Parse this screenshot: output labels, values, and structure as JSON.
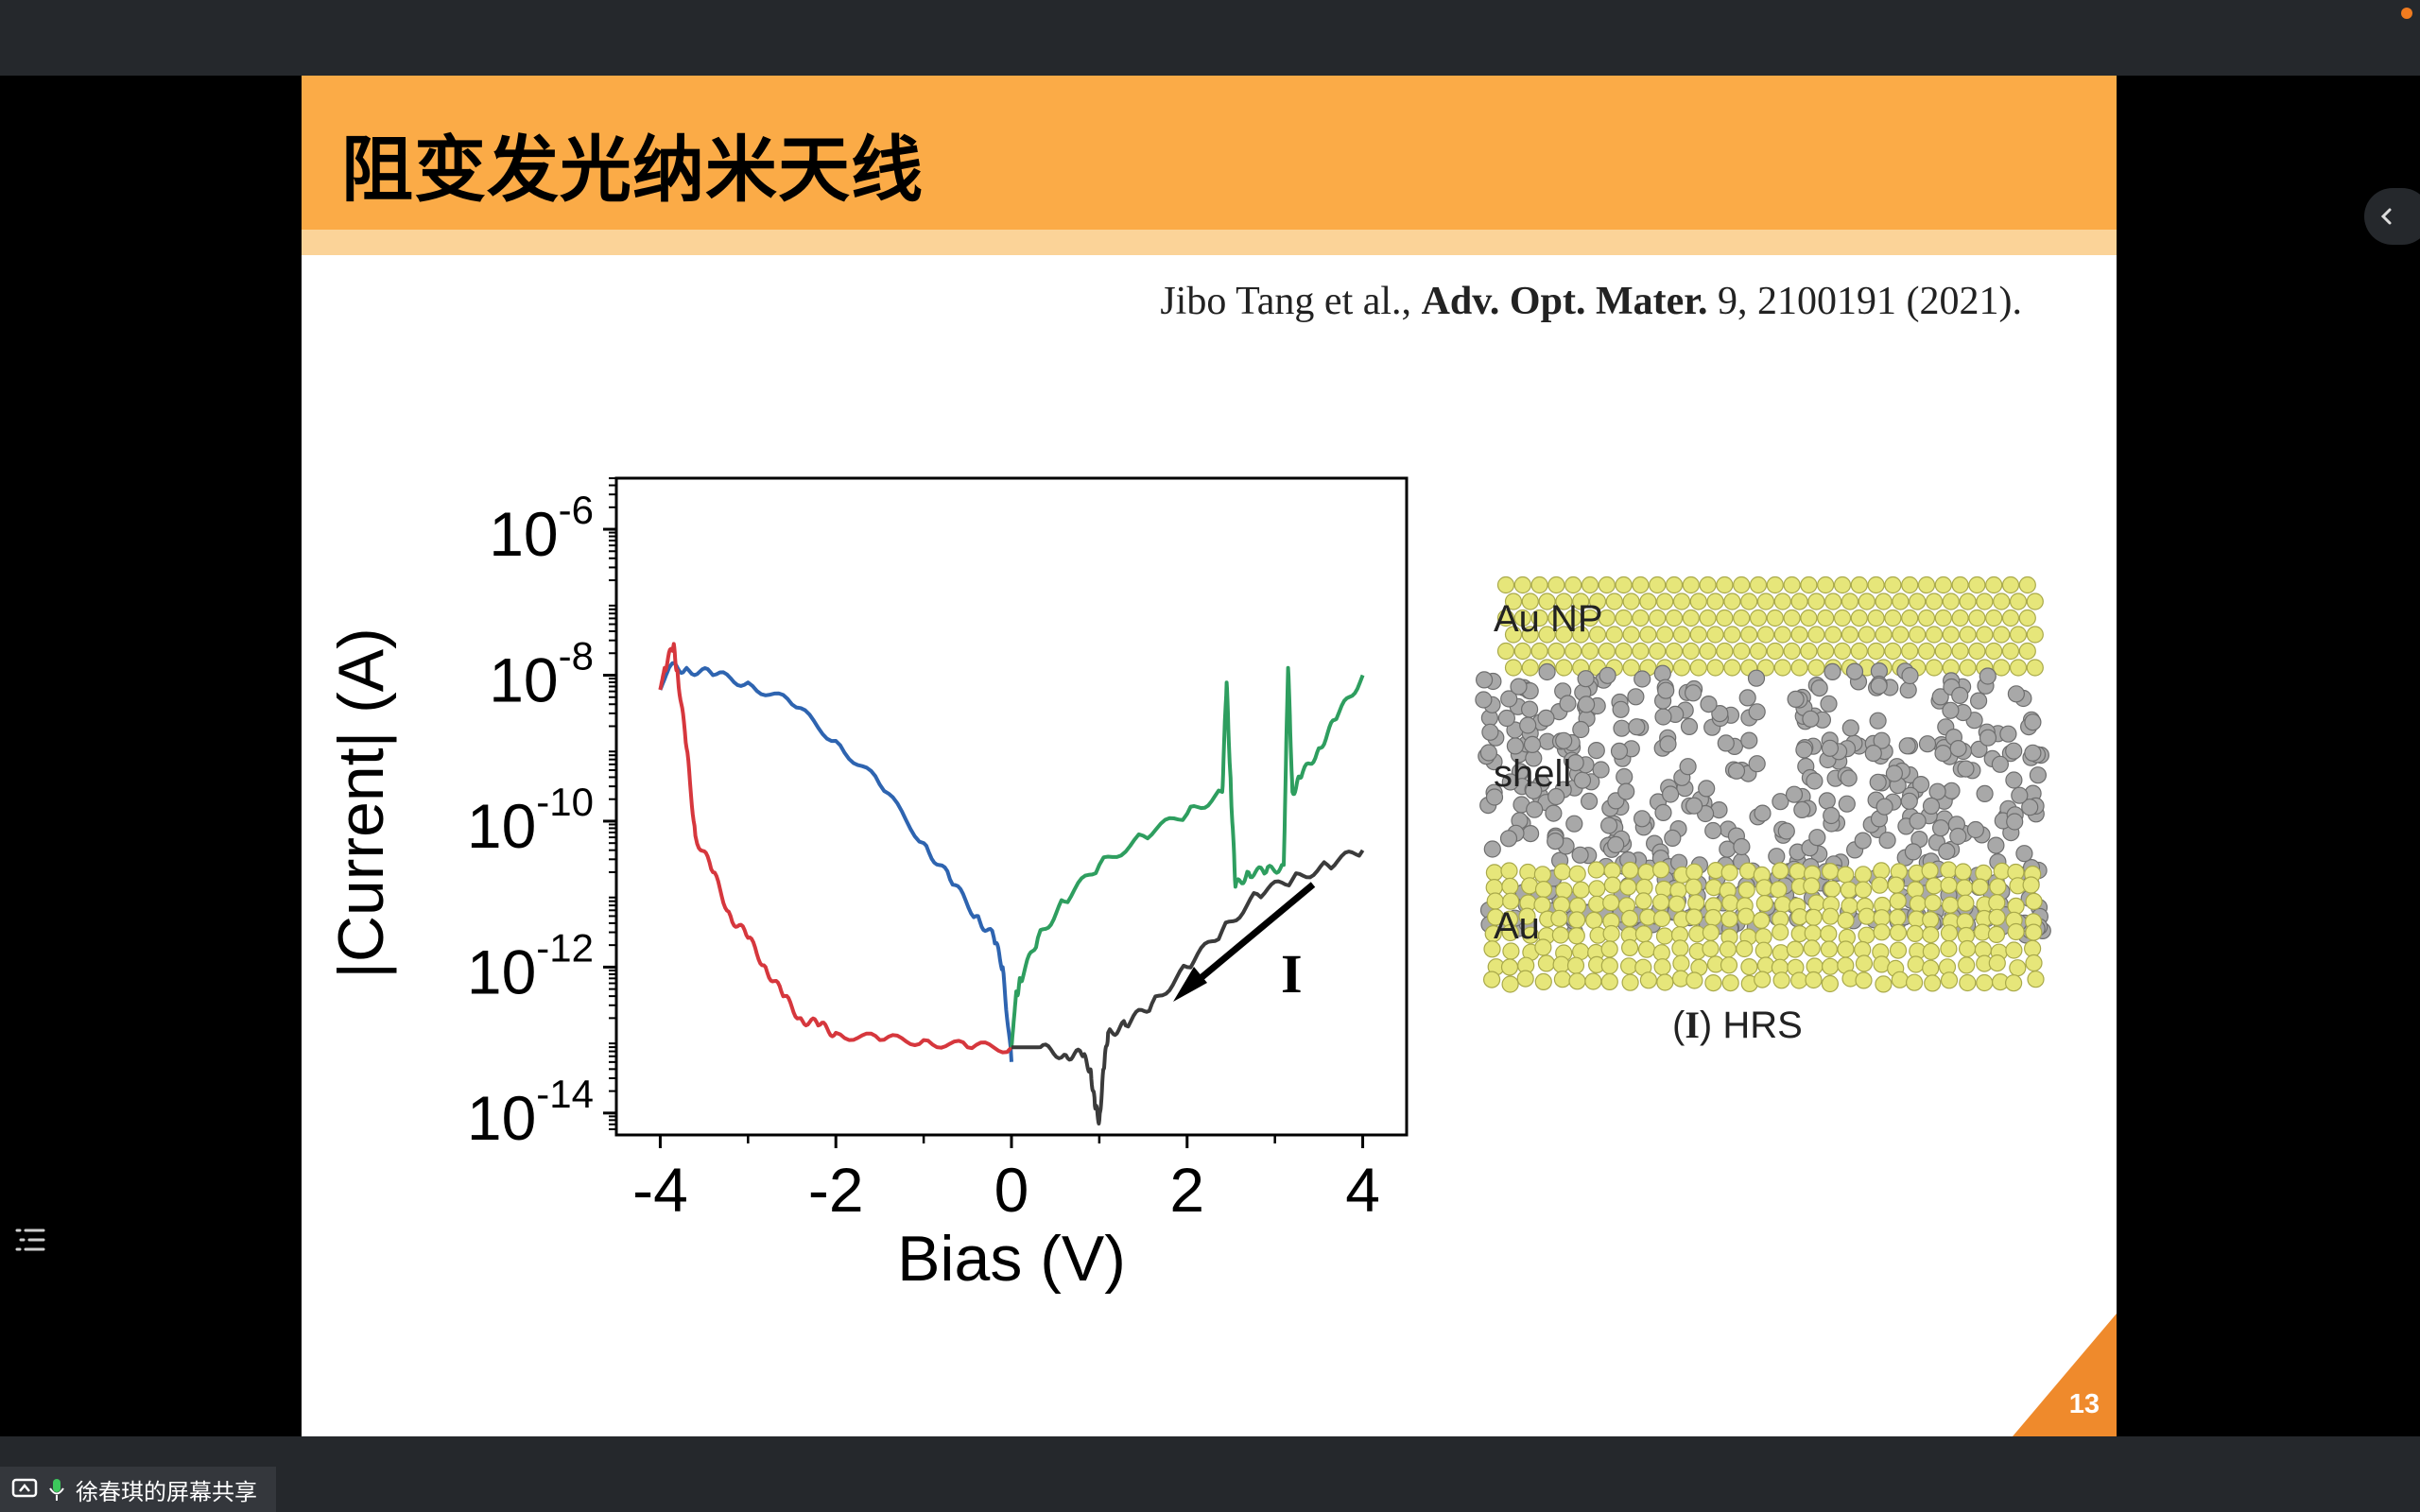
{
  "slide": {
    "title": "阻变发光纳米天线",
    "citation_prefix": "Jibo Tang et al., ",
    "citation_journal": "Adv. Opt. Mater.",
    "citation_suffix": " 9, 2100191 (2021).",
    "page_number": "13"
  },
  "colors": {
    "title_band": "#fbab47",
    "title_strip": "#fbd398",
    "page_corner": "#ef8a2c",
    "gold_atoms": "#e6e67a",
    "grey_atoms": "#a8a8a8"
  },
  "chart_data": {
    "type": "line",
    "xlabel": "Bias (V)",
    "ylabel": "|Current| (A)",
    "y_scale": "log",
    "xlim": [
      -4.5,
      4.5
    ],
    "ylim": [
      -14.3,
      -5.3
    ],
    "x_ticks": [
      -4,
      -2,
      0,
      2,
      4
    ],
    "y_ticks": [
      {
        "base": "10",
        "exp": "-6",
        "value": -6
      },
      {
        "base": "10",
        "exp": "-8",
        "value": -8
      },
      {
        "base": "10",
        "exp": "-10",
        "value": -10
      },
      {
        "base": "10",
        "exp": "-12",
        "value": -12
      },
      {
        "base": "10",
        "exp": "-14",
        "value": -14
      }
    ],
    "annotation": "I",
    "series": [
      {
        "color": "#2e64b0",
        "x": [
          -4.0,
          -3.9,
          -3.7,
          -3.4,
          -3.0,
          -2.5,
          -2.0,
          -1.5,
          -1.0,
          -0.7,
          -0.4,
          -0.2,
          -0.1,
          0.0
        ],
        "y": [
          -8.2,
          -7.9,
          -7.9,
          -8.0,
          -8.1,
          -8.4,
          -8.9,
          -9.5,
          -10.3,
          -10.8,
          -11.3,
          -11.6,
          -12.0,
          -13.3
        ]
      },
      {
        "color": "#d6373d",
        "x": [
          -4.0,
          -3.95,
          -3.85,
          -3.8,
          -3.7,
          -3.6,
          -3.4,
          -3.2,
          -3.0,
          -2.8,
          -2.6,
          -2.4,
          -2.2,
          -2.0,
          -1.5,
          -1.0,
          -0.5,
          0.0
        ],
        "y": [
          -8.2,
          -7.9,
          -7.6,
          -8.0,
          -9.0,
          -10.2,
          -10.7,
          -11.3,
          -11.6,
          -12.0,
          -12.4,
          -12.7,
          -12.8,
          -12.9,
          -13.0,
          -13.0,
          -13.1,
          -13.1
        ]
      },
      {
        "color": "#2e9e5f",
        "x": [
          0.0,
          0.05,
          0.1,
          0.3,
          0.6,
          1.0,
          1.5,
          2.0,
          2.4,
          2.45,
          2.5,
          2.55,
          2.7,
          2.9,
          3.1,
          3.15,
          3.2,
          3.3,
          3.5,
          3.7,
          4.0
        ],
        "y": [
          -13.1,
          -12.4,
          -12.2,
          -11.6,
          -11.1,
          -10.6,
          -10.2,
          -9.9,
          -9.6,
          -8.1,
          -9.6,
          -10.9,
          -10.7,
          -10.7,
          -10.6,
          -7.9,
          -9.6,
          -9.4,
          -9.0,
          -8.6,
          -8.0
        ]
      },
      {
        "color": "#3b3b3b",
        "x": [
          0.0,
          0.3,
          0.6,
          0.8,
          0.9,
          0.95,
          1.0,
          1.05,
          1.1,
          1.3,
          1.6,
          2.0,
          2.4,
          2.8,
          3.2,
          3.6,
          4.0
        ],
        "y": [
          -13.1,
          -13.1,
          -13.2,
          -13.2,
          -13.4,
          -13.9,
          -14.1,
          -13.4,
          -12.9,
          -12.8,
          -12.5,
          -12.0,
          -11.5,
          -11.0,
          -10.8,
          -10.6,
          -10.4
        ]
      }
    ]
  },
  "simulation": {
    "labels": {
      "top": "Au NP",
      "middle": "shell",
      "bottom": "Au"
    },
    "caption_prefix": "(",
    "caption_roman": "I",
    "caption_suffix": ") HRS"
  },
  "toolbar": {
    "share_label": "徐春琪的屏幕共享"
  }
}
